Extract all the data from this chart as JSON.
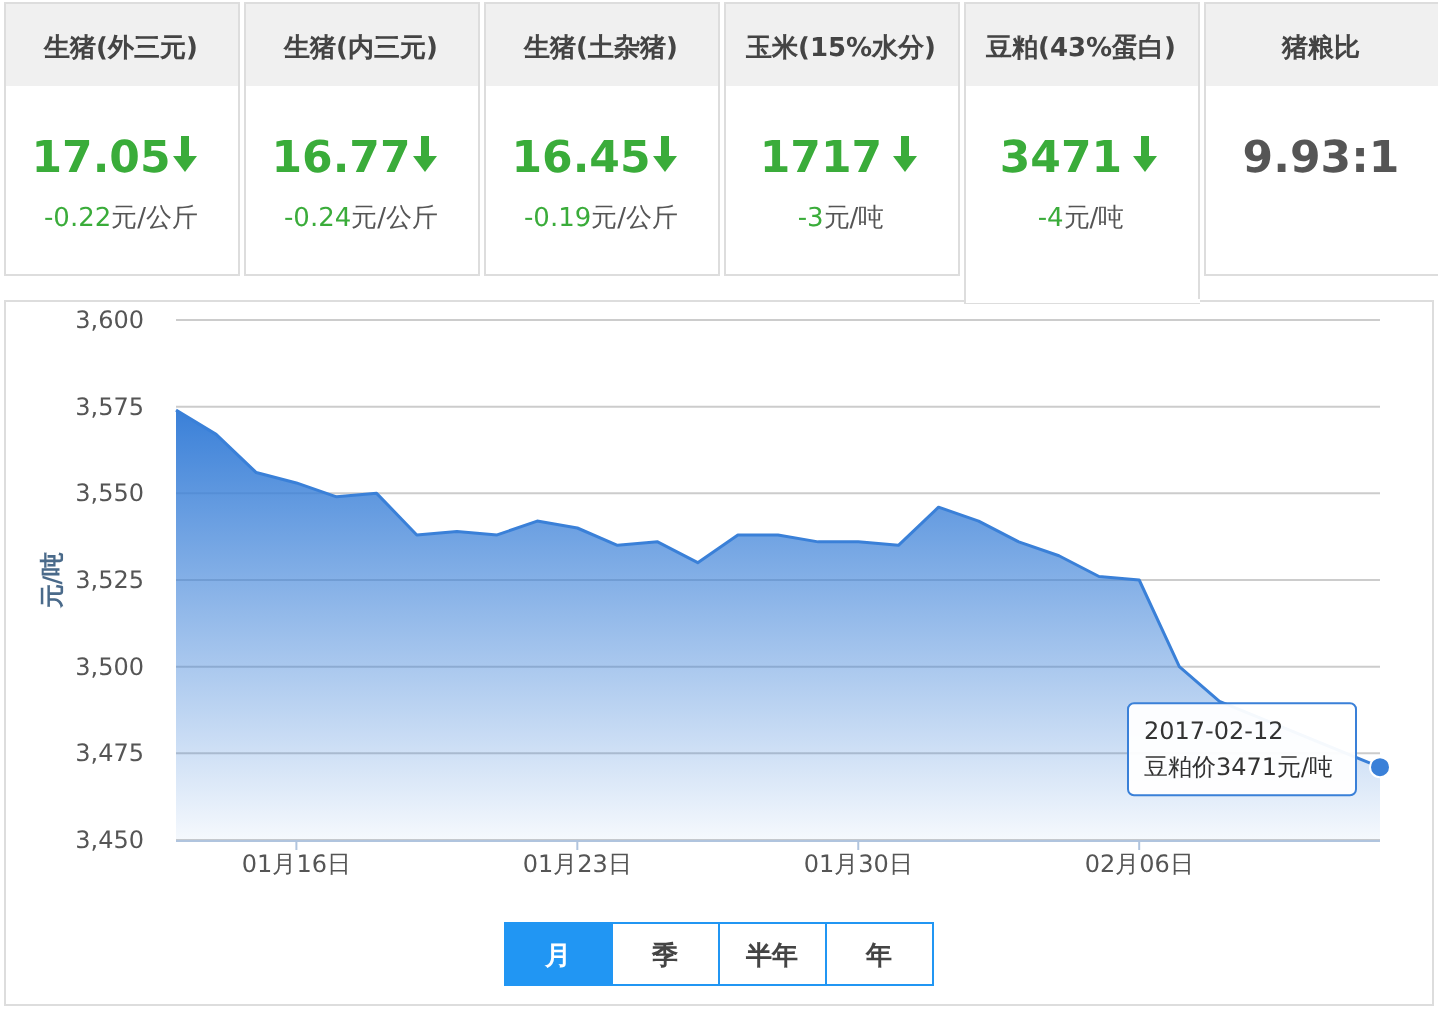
{
  "chart_data": [
    {
      "type": "other",
      "categories": [
        "生猪(外三元)",
        "生猪(内三元)",
        "生猪(土杂猪)",
        "玉米(15%水分)",
        "豆粕(43%蛋白)",
        "猪粮比"
      ],
      "value_labels": [
        "17.05",
        "16.77",
        "16.45",
        "1717",
        "3471",
        "9.93:1"
      ],
      "annotations": [
        "-0.22元/公斤",
        "-0.24元/公斤",
        "-0.19元/公斤",
        "-3元/吨",
        "-4元/吨"
      ]
    },
    {
      "type": "area",
      "ylabel": "元/吨",
      "x": [
        "2017-01-13",
        "2017-01-14",
        "2017-01-15",
        "2017-01-16",
        "2017-01-17",
        "2017-01-18",
        "2017-01-19",
        "2017-01-20",
        "2017-01-21",
        "2017-01-22",
        "2017-01-23",
        "2017-01-24",
        "2017-01-25",
        "2017-01-26",
        "2017-01-27",
        "2017-01-28",
        "2017-01-29",
        "2017-01-30",
        "2017-01-31",
        "2017-02-01",
        "2017-02-02",
        "2017-02-03",
        "2017-02-04",
        "2017-02-05",
        "2017-02-06",
        "2017-02-07",
        "2017-02-08",
        "2017-02-09",
        "2017-02-10",
        "2017-02-11",
        "2017-02-12"
      ],
      "series": [
        {
          "color": "#3a80d8",
          "values": [
            3574,
            3567,
            3556,
            3553,
            3549,
            3550,
            3538,
            3539,
            3538,
            3542,
            3540,
            3535,
            3536,
            3530,
            3538,
            3538,
            3536,
            3536,
            3535,
            3546,
            3542,
            3536,
            3532,
            3526,
            3525,
            3500,
            3490,
            null,
            null,
            null,
            3471
          ]
        }
      ],
      "xlim": [
        "2017-01-13",
        "2017-02-12"
      ],
      "xticks": [
        {
          "value": "2017-01-16",
          "label": "01月16日"
        },
        {
          "value": "2017-01-23",
          "label": "01月23日"
        },
        {
          "value": "2017-01-30",
          "label": "01月30日"
        },
        {
          "value": "2017-02-06",
          "label": "02月06日"
        }
      ],
      "ylim": [
        3450,
        3600
      ],
      "yticks": [
        {
          "value": 3450,
          "label": "3,450"
        },
        {
          "value": 3475,
          "label": "3,475"
        },
        {
          "value": 3500,
          "label": "3,500"
        },
        {
          "value": 3525,
          "label": "3,525"
        },
        {
          "value": 3550,
          "label": "3,550"
        },
        {
          "value": 3575,
          "label": "3,575"
        },
        {
          "value": 3600,
          "label": "3,600"
        }
      ],
      "grid": "y",
      "annotations": [
        {
          "text": "2017-02-12\n豆粕价3471元/吨",
          "x": "2017-02-12",
          "y": 3471
        },
        "月",
        "季",
        "半年",
        "年"
      ]
    }
  ]
}
